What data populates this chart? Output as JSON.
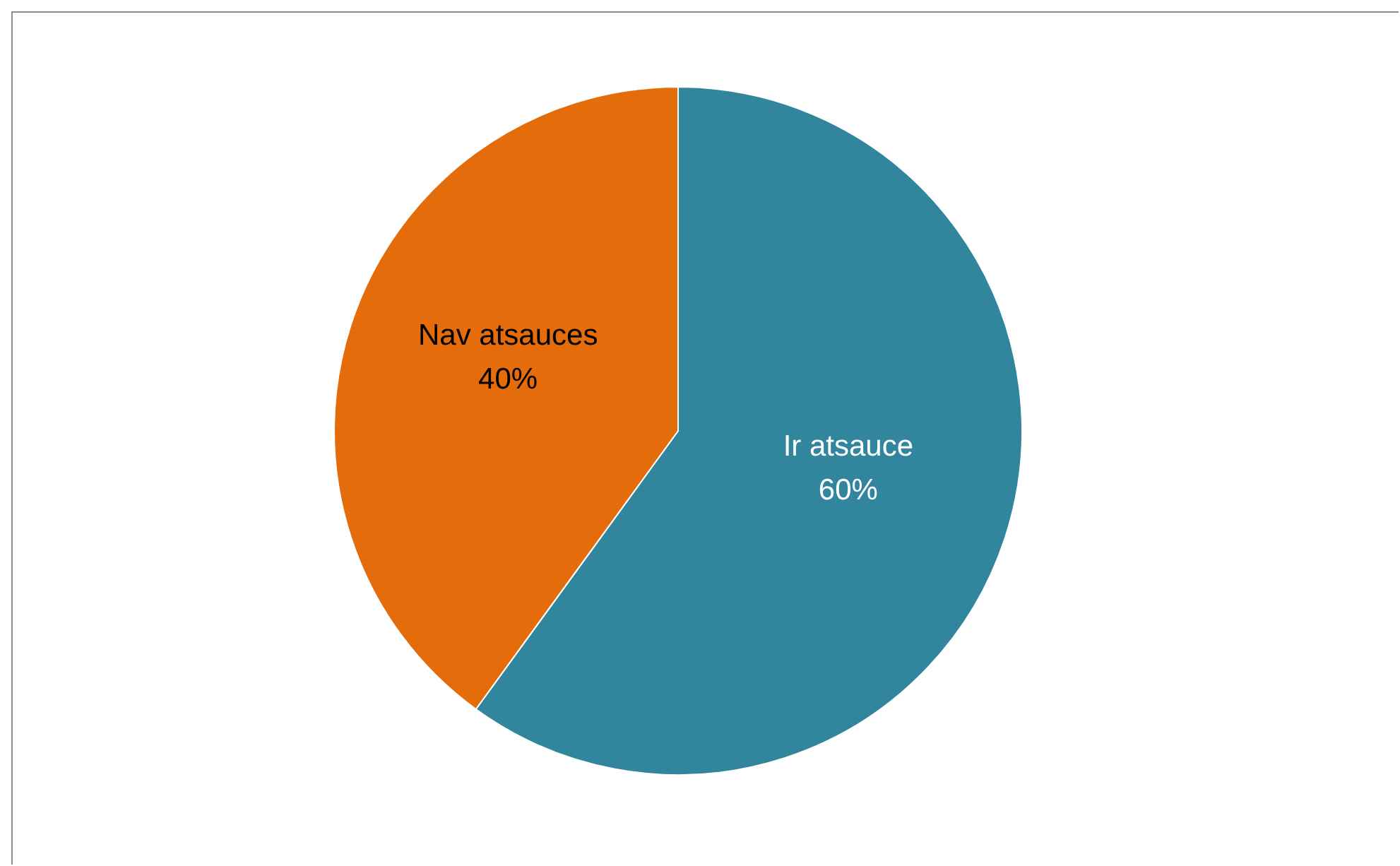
{
  "chart_data": {
    "type": "pie",
    "categories": [
      "Ir atsauce",
      "Nav atsauces"
    ],
    "values": [
      60,
      40
    ],
    "colors": [
      "#31859c",
      "#e46c0a"
    ],
    "value_labels": [
      "60%",
      "40%"
    ],
    "legend": false
  }
}
